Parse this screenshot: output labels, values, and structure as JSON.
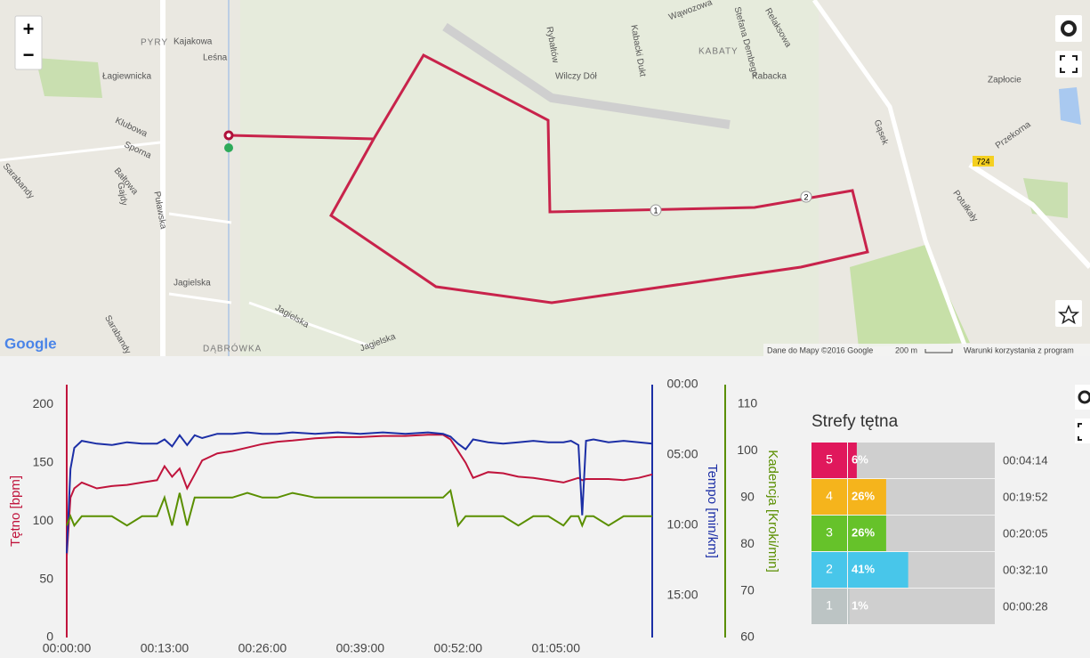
{
  "map": {
    "labels": [
      "PYRY",
      "Kajakowa",
      "Leśna",
      "Łagiewnicka",
      "Klubowa",
      "Sporna",
      "Bałtowa",
      "Gajdy",
      "Puławska",
      "Sarabandy",
      "Jagielska",
      "Jagielska",
      "DĄBRÓWKA",
      "Wilczy Dół",
      "Rybałtów",
      "Kabacki Dukt",
      "Wąwozowa",
      "Stefana Dembego",
      "Relaksowa",
      "KABATY",
      "Kabacka",
      "Gąsek",
      "724",
      "Zapłocie",
      "Przekorna",
      "Potułkały",
      "Sarabandy",
      "Jagielska"
    ],
    "route_markers": [
      "1",
      "2"
    ],
    "logo": "Google",
    "attribution": "Dane do Mapy ©2016 Google",
    "scale": "200 m",
    "terms": "Warunki korzystania z program",
    "zoom_in": "+",
    "zoom_out": "−"
  },
  "chart_data": [
    {
      "type": "line",
      "xlabel": null,
      "x": [
        0,
        0.5,
        1,
        2,
        4,
        6,
        8,
        10,
        12,
        13,
        14,
        15,
        16,
        17,
        18,
        20,
        22,
        24,
        26,
        28,
        30,
        33,
        36,
        39,
        42,
        45,
        48,
        50,
        51,
        52,
        53,
        54,
        56,
        58,
        60,
        62,
        64,
        66,
        67,
        68,
        68.5,
        69,
        70,
        72,
        74,
        76,
        77.8
      ],
      "xlim": [
        0,
        77.8
      ],
      "xticks": [
        {
          "value": 0,
          "label": "00:00:00"
        },
        {
          "value": 13,
          "label": "00:13:00"
        },
        {
          "value": 26,
          "label": "00:26:00"
        },
        {
          "value": 39,
          "label": "00:39:00"
        },
        {
          "value": 52,
          "label": "00:52:00"
        },
        {
          "value": 65,
          "label": "01:05:00"
        }
      ],
      "ylabel": "Tętno [bpm]",
      "ylim": [
        0,
        217
      ],
      "yticks": [
        0,
        50,
        100,
        150,
        200
      ],
      "y2label": "Tempo [min/km]",
      "y2lim": [
        18,
        0
      ],
      "y2ticks": [
        {
          "value": 0,
          "label": "00:00"
        },
        {
          "value": 5,
          "label": "05:00"
        },
        {
          "value": 10,
          "label": "10:00"
        },
        {
          "value": 15,
          "label": "15:00"
        }
      ],
      "y3label": "Kadencja [Kroki/min]",
      "y3lim": [
        60,
        114.2
      ],
      "y3ticks": [
        60,
        70,
        80,
        90,
        100,
        110
      ],
      "series": [
        {
          "name": "Tętno",
          "color": "#c0143c",
          "axis": "y",
          "values": [
            70,
            120,
            128,
            133,
            128,
            130,
            131,
            133,
            135,
            147,
            138,
            145,
            128,
            140,
            152,
            158,
            160,
            163,
            166,
            168,
            169,
            171,
            172,
            172,
            173,
            173,
            174,
            174,
            170,
            160,
            150,
            137,
            142,
            141,
            138,
            137,
            135,
            133,
            135,
            137,
            135,
            136,
            136,
            136,
            135,
            137,
            140
          ]
        },
        {
          "name": "Tempo",
          "color": "#1c2fa6",
          "axis": "y2",
          "values": [
            12,
            6,
            4.5,
            4,
            4.2,
            4.3,
            4.1,
            4.2,
            4.2,
            3.9,
            4.4,
            3.6,
            4.3,
            3.6,
            3.8,
            3.5,
            3.5,
            3.4,
            3.5,
            3.5,
            3.4,
            3.5,
            3.4,
            3.5,
            3.4,
            3.5,
            3.4,
            3.5,
            3.7,
            4.2,
            4.6,
            3.9,
            4.1,
            4.2,
            4.1,
            4,
            4.1,
            4.1,
            4,
            4.3,
            9.3,
            4,
            3.9,
            4.1,
            4,
            4.1,
            4.2
          ]
        },
        {
          "name": "Kadencja",
          "color": "#5a8f00",
          "axis": "y3",
          "values": [
            84,
            86,
            84,
            86,
            86,
            86,
            84,
            86,
            86,
            90,
            84,
            91,
            84,
            90,
            90,
            90,
            90,
            91,
            90,
            90,
            91,
            90,
            90,
            90,
            90,
            90,
            90,
            90,
            91.5,
            84,
            86,
            86,
            86,
            86,
            84,
            86,
            86,
            84,
            86,
            86,
            84,
            86,
            86,
            84,
            86,
            86,
            86
          ]
        }
      ]
    },
    {
      "type": "hbar",
      "title": "Strefy tętna",
      "categories": [
        "5",
        "4",
        "3",
        "2",
        "1"
      ],
      "values": [
        6,
        26,
        26,
        41,
        1
      ],
      "value_labels": [
        "6%",
        "26%",
        "26%",
        "41%",
        "1%"
      ],
      "times": [
        "00:04:14",
        "00:19:52",
        "00:20:05",
        "00:32:10",
        "00:00:28"
      ],
      "colors": [
        "#e0185c",
        "#f5b41c",
        "#66c22a",
        "#48c6ea",
        "#bcc4c4"
      ],
      "xlim": [
        0,
        100
      ]
    }
  ]
}
